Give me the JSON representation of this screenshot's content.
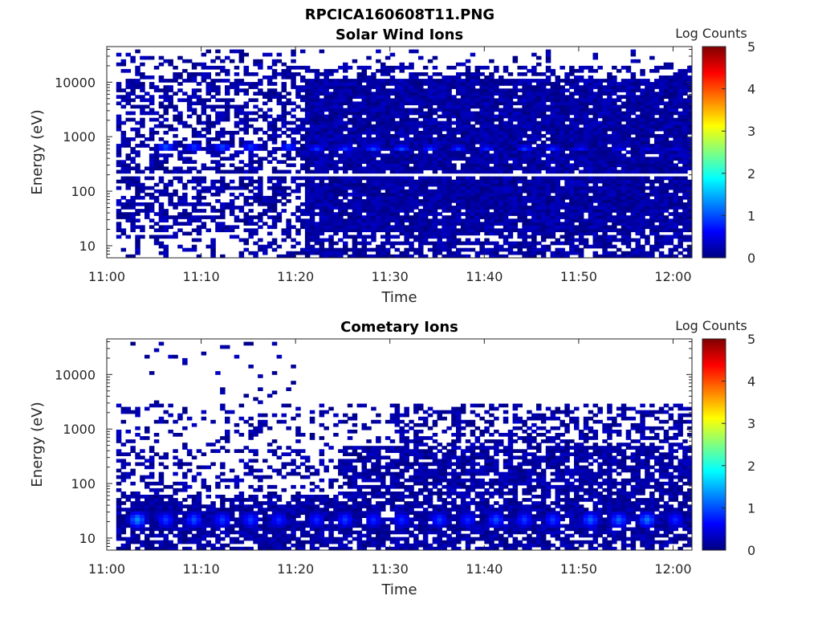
{
  "figure_title": "RPCICA160608T11.PNG",
  "colorbar_ticks": [
    "0",
    "1",
    "2",
    "3",
    "4",
    "5"
  ],
  "colormap": [
    "#000080",
    "#0000ff",
    "#0080ff",
    "#00ffff",
    "#80ff80",
    "#ffff00",
    "#ff8000",
    "#ff0000",
    "#800000"
  ],
  "chart_data": [
    {
      "type": "heatmap",
      "title": "Solar Wind Ions",
      "xlabel": "Time",
      "ylabel": "Energy (eV)",
      "colorbar_label": "Log Counts",
      "x_ticks": [
        "11:00",
        "11:10",
        "11:20",
        "11:30",
        "11:40",
        "11:50",
        "12:00"
      ],
      "x_range": [
        "11:00",
        "12:02"
      ],
      "y_ticks": [
        "10",
        "100",
        "1000",
        "10000"
      ],
      "y_range": [
        6,
        45000
      ],
      "y_scale": "log",
      "color_range": [
        0,
        5
      ],
      "data_start": "11:01",
      "data_end": "12:02",
      "ion_beam_energy_eV": 600,
      "gap_energy_eV": 200,
      "beam_peaks": [
        {
          "time": "11:06",
          "energy_eV": 650,
          "log_counts": 1.2
        },
        {
          "time": "11:09",
          "energy_eV": 650,
          "log_counts": 1.0
        },
        {
          "time": "11:12",
          "energy_eV": 650,
          "log_counts": 1.1
        },
        {
          "time": "11:15",
          "energy_eV": 650,
          "log_counts": 1.0
        },
        {
          "time": "11:19",
          "energy_eV": 650,
          "log_counts": 1.0
        },
        {
          "time": "11:22",
          "energy_eV": 620,
          "log_counts": 0.9
        },
        {
          "time": "11:25",
          "energy_eV": 620,
          "log_counts": 0.9
        },
        {
          "time": "11:28",
          "energy_eV": 620,
          "log_counts": 1.0
        },
        {
          "time": "11:31",
          "energy_eV": 620,
          "log_counts": 1.0
        },
        {
          "time": "11:34",
          "energy_eV": 620,
          "log_counts": 0.9
        },
        {
          "time": "11:37",
          "energy_eV": 620,
          "log_counts": 0.9
        },
        {
          "time": "11:40",
          "energy_eV": 620,
          "log_counts": 0.8
        },
        {
          "time": "11:44",
          "energy_eV": 620,
          "log_counts": 0.9
        },
        {
          "time": "11:47",
          "energy_eV": 620,
          "log_counts": 0.8
        },
        {
          "time": "11:50",
          "energy_eV": 620,
          "log_counts": 0.7
        },
        {
          "time": "11:54",
          "energy_eV": 620,
          "log_counts": 0.6
        },
        {
          "time": "11:57",
          "energy_eV": 620,
          "log_counts": 0.5
        },
        {
          "time": "12:00",
          "energy_eV": 620,
          "log_counts": 0.5
        }
      ]
    },
    {
      "type": "heatmap",
      "title": "Cometary Ions",
      "xlabel": "Time",
      "ylabel": "Energy (eV)",
      "colorbar_label": "Log Counts",
      "x_ticks": [
        "11:00",
        "11:10",
        "11:20",
        "11:30",
        "11:40",
        "11:50",
        "12:00"
      ],
      "x_range": [
        "11:00",
        "12:02"
      ],
      "y_ticks": [
        "10",
        "100",
        "1000",
        "10000"
      ],
      "y_range": [
        6,
        45000
      ],
      "y_scale": "log",
      "color_range": [
        0,
        5
      ],
      "data_start": "11:01",
      "data_end": "12:02",
      "low_energy_peaks": [
        {
          "time": "11:03",
          "energy_eV": 22,
          "log_counts": 1.3
        },
        {
          "time": "11:06",
          "energy_eV": 22,
          "log_counts": 0.9
        },
        {
          "time": "11:09",
          "energy_eV": 22,
          "log_counts": 1.0
        },
        {
          "time": "11:12",
          "energy_eV": 22,
          "log_counts": 0.9
        },
        {
          "time": "11:15",
          "energy_eV": 22,
          "log_counts": 0.9
        },
        {
          "time": "11:18",
          "energy_eV": 22,
          "log_counts": 0.8
        },
        {
          "time": "11:22",
          "energy_eV": 22,
          "log_counts": 0.8
        },
        {
          "time": "11:25",
          "energy_eV": 22,
          "log_counts": 0.9
        },
        {
          "time": "11:28",
          "energy_eV": 22,
          "log_counts": 0.8
        },
        {
          "time": "11:31",
          "energy_eV": 22,
          "log_counts": 0.8
        },
        {
          "time": "11:35",
          "energy_eV": 22,
          "log_counts": 0.9
        },
        {
          "time": "11:38",
          "energy_eV": 22,
          "log_counts": 0.8
        },
        {
          "time": "11:41",
          "energy_eV": 22,
          "log_counts": 1.0
        },
        {
          "time": "11:44",
          "energy_eV": 22,
          "log_counts": 0.9
        },
        {
          "time": "11:47",
          "energy_eV": 22,
          "log_counts": 0.9
        },
        {
          "time": "11:51",
          "energy_eV": 22,
          "log_counts": 1.1
        },
        {
          "time": "11:54",
          "energy_eV": 22,
          "log_counts": 1.1
        },
        {
          "time": "11:57",
          "energy_eV": 22,
          "log_counts": 1.2
        },
        {
          "time": "12:00",
          "energy_eV": 22,
          "log_counts": 0.8
        }
      ]
    }
  ]
}
